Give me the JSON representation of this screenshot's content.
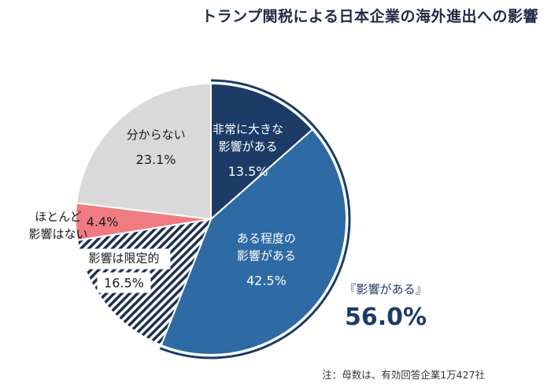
{
  "chart_data": {
    "type": "pie",
    "title": "トランプ関税による日本企業の海外進出への影響",
    "note": "注：母数は、有効回答企業1万427社",
    "slices": [
      {
        "label": "非常に大きな影響がある",
        "label_lines": [
          "非常に大きな",
          "影響がある"
        ],
        "value": 13.5,
        "value_text": "13.5%",
        "color": "#1c3b66"
      },
      {
        "label": "ある程度の影響がある",
        "label_lines": [
          "ある程度の",
          "影響がある"
        ],
        "value": 42.5,
        "value_text": "42.5%",
        "color": "#2e6aa3"
      },
      {
        "label": "影響は限定的",
        "label_lines": [
          "影響は限定的"
        ],
        "value": 16.5,
        "value_text": "16.5%",
        "color": "#1c2f4d",
        "pattern": "diagonal-stripes"
      },
      {
        "label": "ほとんど影響はない",
        "label_lines": [
          "ほとんど",
          "影響はない"
        ],
        "value": 4.4,
        "value_text": "4.4%",
        "color": "#f07b80"
      },
      {
        "label": "分からない",
        "label_lines": [
          "分からない"
        ],
        "value": 23.1,
        "value_text": "23.1%",
        "color": "#d9d9d9"
      }
    ],
    "group_annotation": {
      "label": "『影響がある』",
      "value": 56.0,
      "value_text": "56.0%",
      "color": "#1c3b66"
    }
  }
}
